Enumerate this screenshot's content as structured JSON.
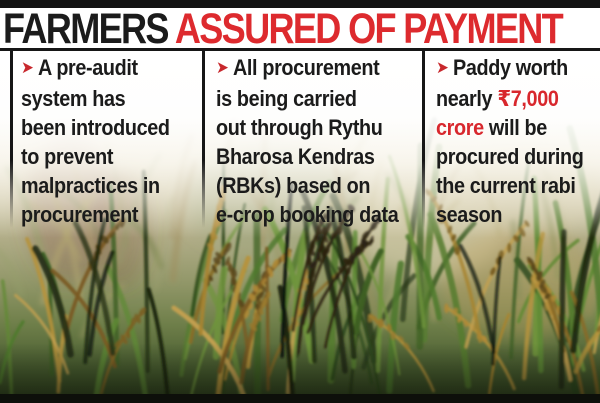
{
  "title": {
    "black_part": "FARMERS ",
    "red_part": "ASSURED OF PAYMENT"
  },
  "bullet_glyph": "➤",
  "columns": [
    {
      "lines": [
        "A pre-audit",
        "system has",
        "been introduced",
        "to prevent",
        "malpractices in",
        "procurement"
      ]
    },
    {
      "lines": [
        "All procurement",
        "is being carried",
        "out through Rythu",
        "Bharosa Kendras",
        "(RBKs) based on",
        "e-crop booking data"
      ]
    },
    {
      "line1": "Paddy worth",
      "line2_normal": "nearly ",
      "line2_red": "₹7,000",
      "line3_red": "crore",
      "line3_normal": " will be",
      "line4": "procured during",
      "line5": "the current rabi",
      "line6": "season"
    }
  ],
  "photo": {
    "description": "Close-up photo of ripening paddy crop in a field"
  },
  "colors": {
    "accent_red": "#dd2a2e",
    "text_black": "#1b1b1b",
    "bar_black": "#131313"
  }
}
